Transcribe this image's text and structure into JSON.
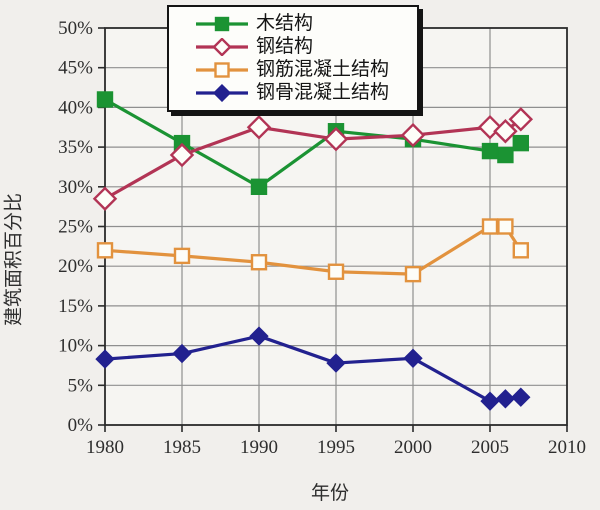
{
  "chart_data": {
    "type": "line",
    "title": "",
    "xlabel": "年份",
    "ylabel": "建筑面积百分比",
    "xlim": [
      1980,
      2010
    ],
    "ylim": [
      0,
      50
    ],
    "grid": true,
    "legend_position": "top-center",
    "x_ticks": [
      "1980",
      "1985",
      "1990",
      "1995",
      "2000",
      "2005",
      "2010"
    ],
    "x_tick_values": [
      1980,
      1985,
      1990,
      1995,
      2000,
      2005,
      2010
    ],
    "y_ticks": [
      "0%",
      "5%",
      "10%",
      "15%",
      "20%",
      "25%",
      "30%",
      "35%",
      "40%",
      "45%",
      "50%"
    ],
    "y_tick_values": [
      0,
      5,
      10,
      15,
      20,
      25,
      30,
      35,
      40,
      45,
      50
    ],
    "x": [
      1980,
      1985,
      1990,
      1995,
      2000,
      2005,
      2006,
      2007
    ],
    "series": [
      {
        "key": "wood",
        "name": "木结构",
        "color": "#1b9333",
        "marker": "square",
        "marker_fill": "solid",
        "values": [
          41,
          35.5,
          30,
          37,
          36,
          34.5,
          34,
          35.5
        ]
      },
      {
        "key": "steel",
        "name": "钢结构",
        "color": "#b23455",
        "marker": "diamond",
        "marker_fill": "open",
        "values": [
          28.5,
          34,
          37.5,
          36,
          36.5,
          37.5,
          37,
          38.5
        ]
      },
      {
        "key": "reinforced-concrete",
        "name": "钢筋混凝土结构",
        "color": "#e2923e",
        "marker": "square",
        "marker_fill": "open",
        "values": [
          22,
          21.3,
          20.5,
          19.3,
          19,
          25,
          25,
          22
        ]
      },
      {
        "key": "steel-concrete",
        "name": "钢骨混凝土结构",
        "color": "#22218f",
        "marker": "diamond",
        "marker_fill": "solid",
        "values": [
          8.3,
          9,
          11.2,
          7.8,
          8.4,
          3,
          3.3,
          3.5
        ]
      }
    ]
  },
  "colors": {
    "background": "#f1efec",
    "plot_background": "#f6f5f2",
    "gridline": "#8f8f8f",
    "frame": "#2b2b2b",
    "open_marker_fill": "#fdfdf8",
    "legend_border": "#141414"
  }
}
